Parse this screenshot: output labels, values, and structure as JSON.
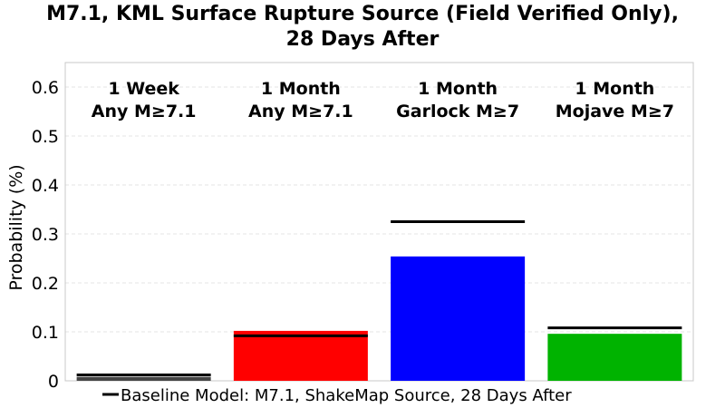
{
  "chart_data": {
    "type": "bar",
    "title_lines": [
      "M7.1, KML Surface Rupture Source (Field Verified Only),",
      "28 Days After"
    ],
    "xlabel": "",
    "ylabel": "Probability (%)",
    "ylim": [
      0,
      0.65
    ],
    "yticks": [
      0,
      0.1,
      0.2,
      0.3,
      0.4,
      0.5,
      0.6
    ],
    "ytick_labels": [
      "0",
      "0.1",
      "0.2",
      "0.3",
      "0.4",
      "0.5",
      "0.6"
    ],
    "grid": true,
    "categories": [
      [
        "1 Week",
        "Any M≥7.1"
      ],
      [
        "1 Month",
        "Any M≥7.1"
      ],
      [
        "1 Month",
        "Garlock M≥7"
      ],
      [
        "1 Month",
        "Mojave M≥7"
      ]
    ],
    "values": [
      0.008,
      0.102,
      0.254,
      0.096
    ],
    "bar_colors": [
      "#444444",
      "#ff0000",
      "#0000ff",
      "#00b300"
    ],
    "baseline": {
      "name": "Baseline Model: M7.1, ShakeMap Source, 28 Days After",
      "values": [
        0.012,
        0.092,
        0.325,
        0.108
      ],
      "color": "#000000"
    },
    "legend_placement": "bottom"
  }
}
